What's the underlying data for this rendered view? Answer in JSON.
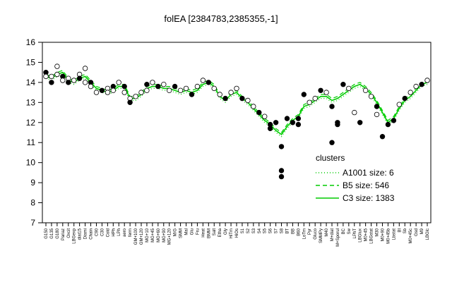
{
  "chart_data": {
    "type": "line",
    "title": "folEA [2384783,2385355,-1]",
    "ylim": [
      7,
      16
    ],
    "y_ticks": [
      7,
      8,
      9,
      10,
      11,
      12,
      13,
      14,
      15,
      16
    ],
    "x_tick_labels": [
      "G150",
      "G135",
      "G180",
      "Pariaz",
      "Oxcit",
      "LBGexp",
      "diat15",
      "Diami",
      "Chain",
      "C90",
      "C30",
      "Cold",
      "HPh",
      "LPh",
      "aero",
      "ferm",
      "GM+100",
      "GM+120",
      "MG+10",
      "MG+45",
      "MG+60",
      "MG+90",
      "MG+120",
      "M/G",
      "SMM",
      "Mal",
      "Glu",
      "Fru",
      "Heat",
      "BMM",
      "Salt",
      "Etha",
      "Gly",
      "HiTm",
      "HiOs",
      "S1",
      "S2",
      "S3",
      "S4",
      "S5",
      "S6",
      "S7",
      "S8",
      "BT",
      "BB",
      "B60",
      "LoTm",
      "Pyr",
      "Gluco",
      "SMMPy",
      "M40",
      "M+diat",
      "M+Sporul",
      "BC",
      "Sw",
      "LPhT",
      "LBGlux",
      "M0+45",
      "LBGstat",
      "M30",
      "M0+90",
      "M0+45b",
      "Lbstat",
      "BI",
      "Sb",
      "M0+45c",
      "Gsd",
      "M9",
      "LBGlc"
    ],
    "colors": {
      "line": "#00cc00",
      "points": "#000000"
    },
    "legend": {
      "title": "clusters",
      "position": "right",
      "entries": [
        {
          "label": "A1001 size: 6",
          "style": "dotted"
        },
        {
          "label": "B5 size: 546",
          "style": "dashed"
        },
        {
          "label": "C3 size: 1383",
          "style": "solid"
        }
      ]
    },
    "series": [
      {
        "style": "solid",
        "values": [
          14.3,
          14.2,
          14.4,
          14.5,
          14.1,
          14.0,
          14.2,
          14.3,
          14.0,
          13.7,
          13.6,
          13.5,
          13.6,
          13.8,
          13.8,
          13.2,
          13.2,
          13.4,
          13.7,
          13.8,
          13.8,
          13.7,
          13.7,
          13.6,
          13.5,
          13.6,
          13.5,
          13.6,
          13.9,
          14.0,
          13.8,
          13.3,
          13.1,
          13.4,
          13.5,
          13.2,
          13.0,
          12.7,
          12.4,
          12.1,
          11.9,
          11.6,
          11.4,
          11.8,
          12.1,
          12.3,
          12.8,
          12.9,
          13.1,
          13.3,
          13.3,
          13.1,
          13.2,
          13.4,
          13.6,
          13.8,
          13.9,
          13.7,
          13.4,
          13.0,
          12.5,
          12.0,
          12.2,
          12.7,
          13.1,
          13.3,
          13.6,
          13.9,
          14.0
        ]
      },
      {
        "style": "dashed",
        "values": [
          14.4,
          14.3,
          14.5,
          14.6,
          14.2,
          14.1,
          14.3,
          14.4,
          14.1,
          13.8,
          13.7,
          13.6,
          13.7,
          13.9,
          13.9,
          13.3,
          13.3,
          13.5,
          13.8,
          13.9,
          13.9,
          13.8,
          13.8,
          13.7,
          13.6,
          13.7,
          13.6,
          13.7,
          14.0,
          14.1,
          13.9,
          13.4,
          13.2,
          13.5,
          13.6,
          13.3,
          13.1,
          12.8,
          12.5,
          12.2,
          12.0,
          11.7,
          11.5,
          11.9,
          12.2,
          12.4,
          12.9,
          13.0,
          13.2,
          13.4,
          13.4,
          13.2,
          13.3,
          13.5,
          13.7,
          13.9,
          14.0,
          13.8,
          13.5,
          13.1,
          12.6,
          12.1,
          12.3,
          12.8,
          13.2,
          13.4,
          13.7,
          14.0,
          14.1
        ]
      },
      {
        "style": "dotted",
        "values": [
          14.2,
          14.1,
          14.3,
          14.4,
          14.0,
          13.9,
          14.1,
          14.2,
          13.9,
          13.6,
          13.5,
          13.4,
          13.5,
          13.7,
          13.7,
          13.1,
          13.1,
          13.3,
          13.6,
          13.7,
          13.7,
          13.6,
          13.6,
          13.5,
          13.4,
          13.5,
          13.4,
          13.5,
          13.8,
          13.9,
          13.7,
          13.2,
          13.0,
          13.3,
          13.4,
          13.1,
          12.9,
          12.6,
          12.3,
          12.0,
          11.8,
          11.5,
          11.3,
          11.7,
          12.0,
          12.2,
          12.7,
          12.8,
          13.0,
          13.2,
          13.2,
          13.0,
          13.1,
          13.3,
          13.5,
          13.7,
          13.8,
          13.6,
          13.3,
          12.9,
          12.4,
          11.9,
          12.1,
          12.6,
          13.0,
          13.2,
          13.5,
          13.8,
          13.9
        ]
      }
    ],
    "points": [
      [
        0,
        14.5
      ],
      [
        0,
        14.3
      ],
      [
        1,
        14.3
      ],
      [
        1,
        14.0
      ],
      [
        2,
        14.8
      ],
      [
        2,
        14.4
      ],
      [
        3,
        14.3
      ],
      [
        3,
        14.1
      ],
      [
        4,
        14.2
      ],
      [
        4,
        14.0
      ],
      [
        5,
        14.1
      ],
      [
        6,
        14.4
      ],
      [
        6,
        14.2
      ],
      [
        7,
        14.7
      ],
      [
        7,
        14.0
      ],
      [
        8,
        14.0
      ],
      [
        8,
        13.8
      ],
      [
        9,
        13.5
      ],
      [
        10,
        13.6
      ],
      [
        11,
        13.7
      ],
      [
        11,
        13.5
      ],
      [
        12,
        13.8
      ],
      [
        12,
        13.6
      ],
      [
        13,
        14.0
      ],
      [
        14,
        13.8
      ],
      [
        14,
        13.5
      ],
      [
        15,
        13.2
      ],
      [
        15,
        13.0
      ],
      [
        16,
        13.3
      ],
      [
        17,
        13.5
      ],
      [
        18,
        13.9
      ],
      [
        18,
        13.6
      ],
      [
        19,
        14.0
      ],
      [
        20,
        13.8
      ],
      [
        21,
        13.9
      ],
      [
        22,
        13.6
      ],
      [
        23,
        13.8
      ],
      [
        24,
        13.6
      ],
      [
        25,
        13.7
      ],
      [
        26,
        13.4
      ],
      [
        27,
        13.8
      ],
      [
        28,
        14.1
      ],
      [
        29,
        14.0
      ],
      [
        30,
        13.7
      ],
      [
        31,
        13.4
      ],
      [
        32,
        13.2
      ],
      [
        33,
        13.5
      ],
      [
        34,
        13.7
      ],
      [
        35,
        13.2
      ],
      [
        36,
        13.1
      ],
      [
        37,
        12.8
      ],
      [
        38,
        12.5
      ],
      [
        39,
        12.3
      ],
      [
        40,
        11.9
      ],
      [
        40,
        11.7
      ],
      [
        41,
        12.0
      ],
      [
        42,
        10.8
      ],
      [
        42,
        9.3
      ],
      [
        42,
        9.6
      ],
      [
        43,
        12.2
      ],
      [
        44,
        12.0
      ],
      [
        45,
        12.2
      ],
      [
        45,
        11.9
      ],
      [
        46,
        13.4
      ],
      [
        47,
        13.0
      ],
      [
        48,
        13.2
      ],
      [
        49,
        13.6
      ],
      [
        50,
        13.5
      ],
      [
        51,
        11.0
      ],
      [
        51,
        12.8
      ],
      [
        52,
        12.0
      ],
      [
        52,
        11.9
      ],
      [
        53,
        13.9
      ],
      [
        54,
        13.7
      ],
      [
        55,
        12.5
      ],
      [
        56,
        12.0
      ],
      [
        57,
        13.6
      ],
      [
        58,
        13.3
      ],
      [
        59,
        12.8
      ],
      [
        59,
        12.4
      ],
      [
        60,
        11.3
      ],
      [
        61,
        11.9
      ],
      [
        62,
        12.1
      ],
      [
        63,
        12.9
      ],
      [
        64,
        13.2
      ],
      [
        65,
        13.5
      ],
      [
        66,
        13.8
      ],
      [
        67,
        13.9
      ],
      [
        68,
        14.1
      ]
    ]
  }
}
